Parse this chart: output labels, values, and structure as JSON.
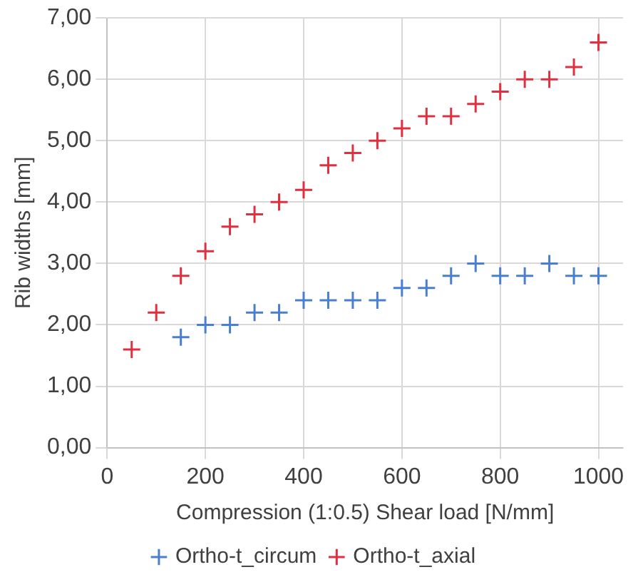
{
  "chart_data": {
    "type": "scatter",
    "xlabel": "Compression (1:0.5) Shear load [N/mm]",
    "ylabel": "Rib widths [mm]",
    "series": [
      {
        "name": "Ortho-t_circum",
        "color": "#4a7fcf",
        "x": [
          150,
          200,
          250,
          300,
          350,
          400,
          450,
          500,
          550,
          600,
          650,
          700,
          750,
          800,
          850,
          900,
          950,
          1000
        ],
        "values": [
          1.8,
          2.0,
          2.0,
          2.2,
          2.2,
          2.4,
          2.4,
          2.4,
          2.4,
          2.6,
          2.6,
          2.8,
          3.0,
          2.8,
          2.8,
          3.0,
          2.8,
          2.8
        ]
      },
      {
        "name": "Ortho-t_axial",
        "color": "#e0303f",
        "x": [
          50,
          100,
          150,
          200,
          250,
          300,
          350,
          400,
          450,
          500,
          550,
          600,
          650,
          700,
          750,
          800,
          850,
          900,
          950,
          1000
        ],
        "values": [
          1.6,
          2.2,
          2.8,
          3.2,
          3.6,
          3.8,
          4.0,
          4.2,
          4.6,
          4.8,
          5.0,
          5.2,
          5.4,
          5.4,
          5.6,
          5.8,
          6.0,
          6.0,
          6.2,
          6.6
        ]
      }
    ],
    "xlim": [
      0,
      1050
    ],
    "xticks": [
      0,
      200,
      400,
      600,
      800,
      1000
    ],
    "ylim": [
      0,
      7
    ],
    "yticks": [
      {
        "value": 0,
        "label": "0,00"
      },
      {
        "value": 1,
        "label": "1,00"
      },
      {
        "value": 2,
        "label": "2,00"
      },
      {
        "value": 3,
        "label": "3,00"
      },
      {
        "value": 4,
        "label": "4,00"
      },
      {
        "value": 5,
        "label": "5,00"
      },
      {
        "value": 6,
        "label": "6,00"
      },
      {
        "value": 7,
        "label": "7,00"
      }
    ],
    "grid": true,
    "legend": "bottom",
    "marker": "cross"
  }
}
